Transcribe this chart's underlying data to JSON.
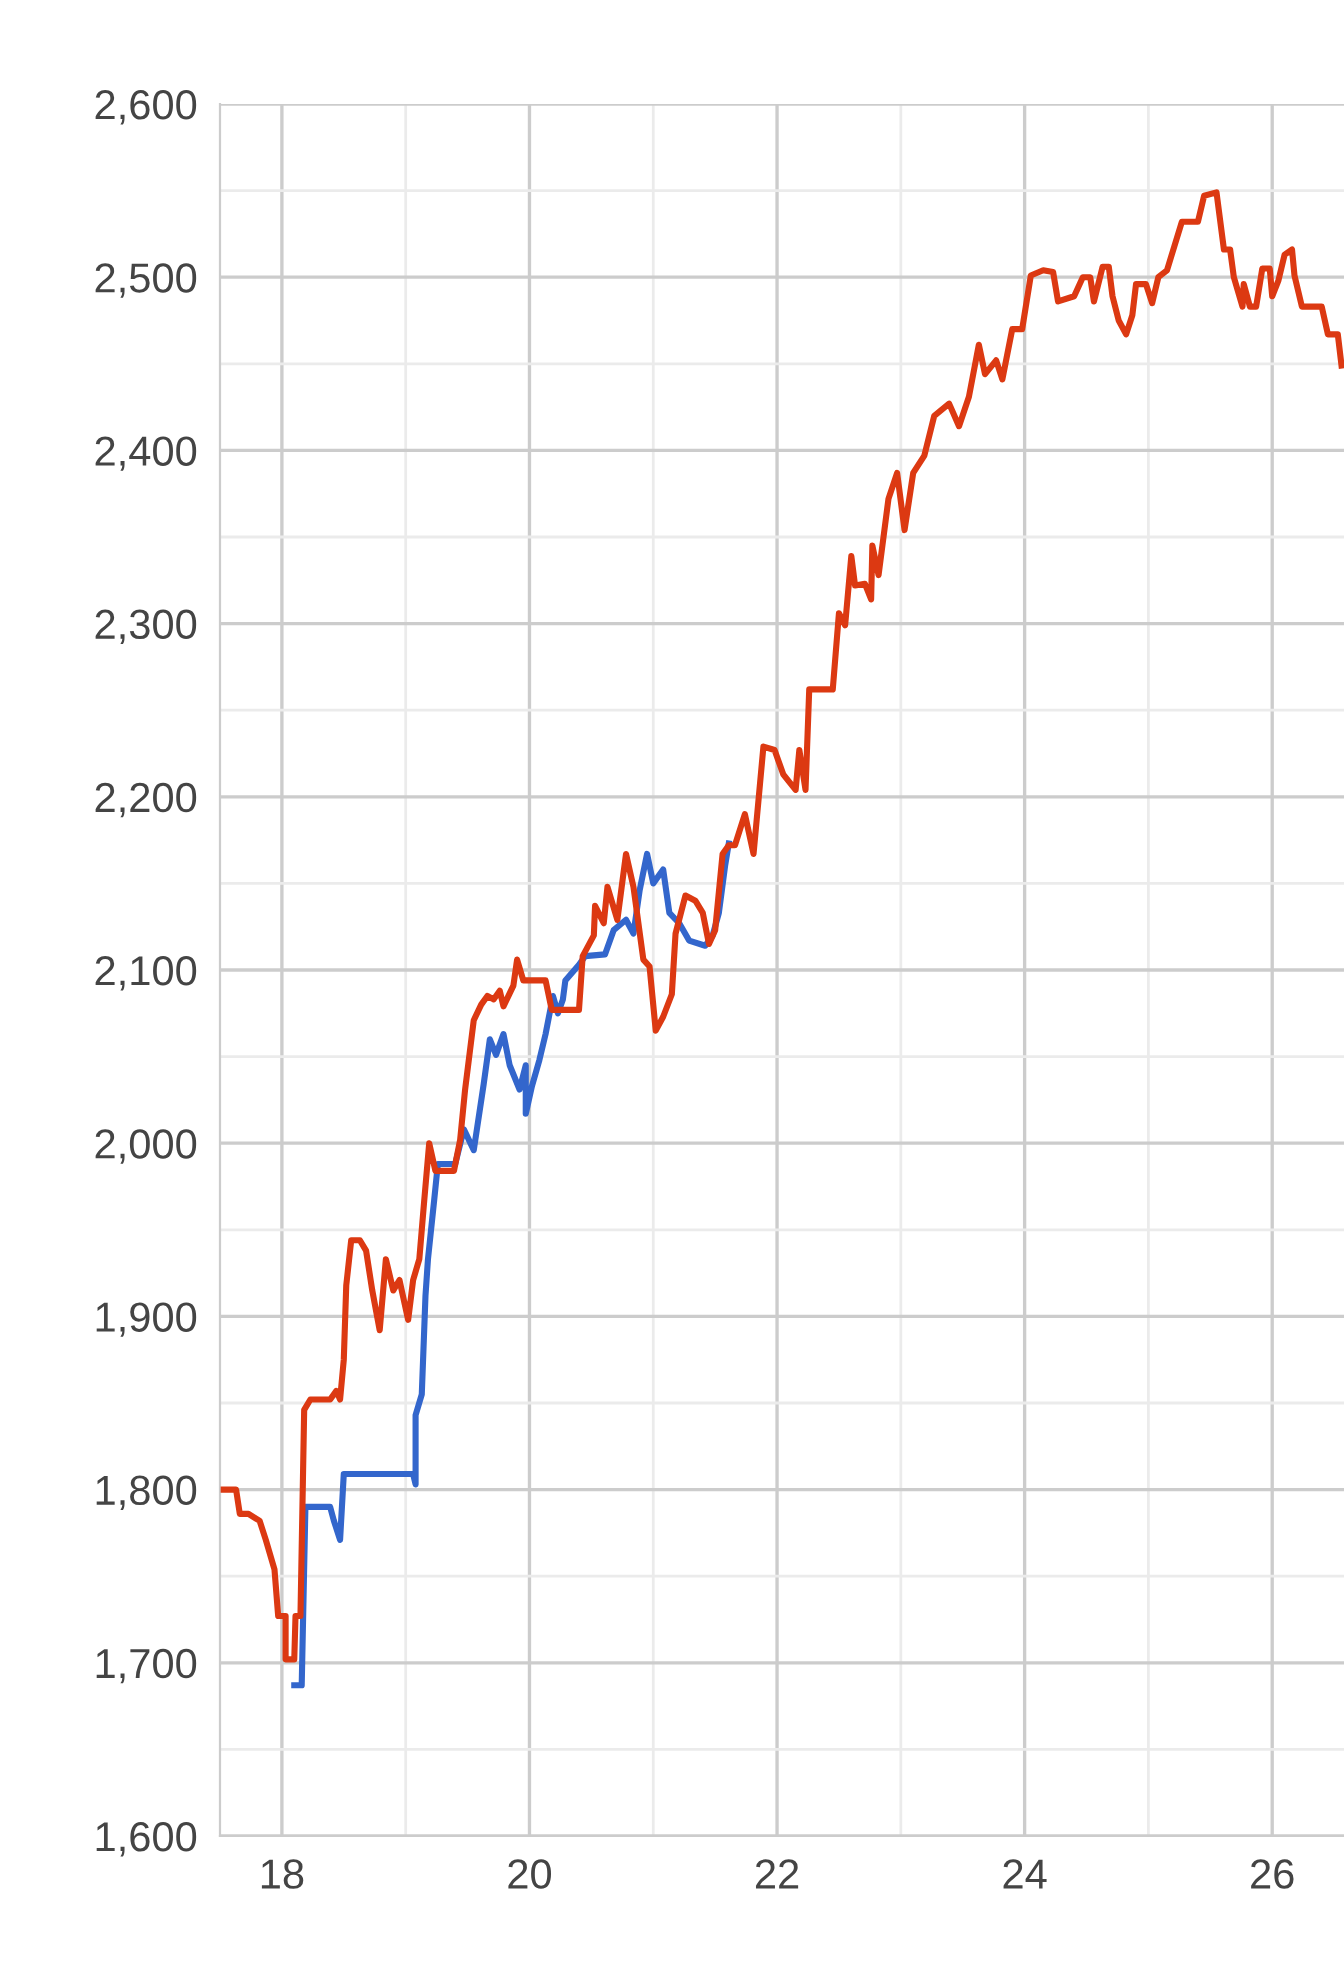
{
  "chart_data": {
    "type": "line",
    "xlim": [
      17.5,
      26.58
    ],
    "ylim": [
      1600,
      2600
    ],
    "xticks": [
      18,
      {
        "value": 19,
        "label": null
      },
      20,
      {
        "value": 21,
        "label": null
      },
      22,
      {
        "value": 23,
        "label": null
      },
      24,
      {
        "value": 25,
        "label": null
      },
      26
    ],
    "yticks": [
      {
        "value": 1600,
        "label": "1,600"
      },
      {
        "value": 1650,
        "label": null
      },
      {
        "value": 1700,
        "label": "1,700"
      },
      {
        "value": 1750,
        "label": null
      },
      {
        "value": 1800,
        "label": "1,800"
      },
      {
        "value": 1850,
        "label": null
      },
      {
        "value": 1900,
        "label": "1,900"
      },
      {
        "value": 1950,
        "label": null
      },
      {
        "value": 2000,
        "label": "2,000"
      },
      {
        "value": 2050,
        "label": null
      },
      {
        "value": 2100,
        "label": "2,100"
      },
      {
        "value": 2150,
        "label": null
      },
      {
        "value": 2200,
        "label": "2,200"
      },
      {
        "value": 2250,
        "label": null
      },
      {
        "value": 2300,
        "label": "2,300"
      },
      {
        "value": 2350,
        "label": null
      },
      {
        "value": 2400,
        "label": "2,400"
      },
      {
        "value": 2450,
        "label": null
      },
      {
        "value": 2500,
        "label": "2,500"
      },
      {
        "value": 2550,
        "label": null
      },
      {
        "value": 2600,
        "label": "2,600"
      }
    ],
    "grid": true,
    "marker": "none",
    "line_style": "solid",
    "series": [
      {
        "color": "#3366cc",
        "x": [
          18.1,
          18.16,
          18.19,
          18.39,
          18.42,
          18.47,
          18.5,
          19.06,
          19.08,
          19.08,
          19.13,
          19.16,
          19.18,
          19.23,
          19.26,
          19.4,
          19.47,
          19.55,
          19.63,
          19.68,
          19.73,
          19.79,
          19.84,
          19.92,
          19.97,
          19.97,
          20.02,
          20.08,
          20.13,
          20.19,
          20.23,
          20.27,
          20.29,
          20.4,
          20.45,
          20.61,
          20.68,
          20.78,
          20.84,
          20.89,
          20.95,
          21.0,
          21.08,
          21.13,
          21.21,
          21.29,
          21.42,
          21.48,
          21.53,
          21.58,
          21.61
        ],
        "values": [
          1687,
          1687,
          1790,
          1790,
          1782,
          1771,
          1809,
          1809,
          1803,
          1843,
          1855,
          1912,
          1933,
          1967,
          1988,
          1988,
          2008,
          1996,
          2034,
          2060,
          2051,
          2063,
          2045,
          2031,
          2045,
          2017,
          2033,
          2048,
          2063,
          2085,
          2075,
          2083,
          2094,
          2103,
          2108,
          2109,
          2123,
          2129,
          2121,
          2146,
          2167,
          2150,
          2158,
          2133,
          2127,
          2117,
          2114,
          2120,
          2133,
          2160,
          2173
        ]
      },
      {
        "color": "#dc3912",
        "x": [
          17.53,
          17.63,
          17.66,
          17.73,
          17.82,
          17.87,
          17.94,
          17.97,
          18.03,
          18.03,
          18.1,
          18.11,
          18.15,
          18.18,
          18.23,
          18.39,
          18.44,
          18.47,
          18.5,
          18.52,
          18.56,
          18.63,
          18.68,
          18.73,
          18.79,
          18.84,
          18.9,
          18.95,
          19.02,
          19.06,
          19.11,
          19.15,
          19.19,
          19.24,
          19.39,
          19.44,
          19.48,
          19.55,
          19.61,
          19.66,
          19.71,
          19.76,
          19.79,
          19.87,
          19.9,
          19.95,
          20.13,
          20.18,
          20.4,
          20.43,
          20.52,
          20.53,
          20.6,
          20.63,
          20.71,
          20.78,
          20.84,
          20.92,
          20.97,
          21.02,
          21.08,
          21.15,
          21.18,
          21.26,
          21.34,
          21.4,
          21.45,
          21.5,
          21.56,
          21.61,
          21.66,
          21.74,
          21.81,
          21.89,
          21.98,
          22.05,
          22.15,
          22.18,
          22.23,
          22.26,
          22.45,
          22.5,
          22.55,
          22.6,
          22.63,
          22.71,
          22.76,
          22.77,
          22.82,
          22.9,
          22.97,
          23.03,
          23.1,
          23.19,
          23.27,
          23.39,
          23.47,
          23.55,
          23.63,
          23.68,
          23.77,
          23.82,
          23.9,
          23.98,
          24.05,
          24.15,
          24.23,
          24.27,
          24.4,
          24.47,
          24.53,
          24.56,
          24.63,
          24.68,
          24.71,
          24.76,
          24.82,
          24.87,
          24.9,
          24.98,
          25.03,
          25.08,
          25.15,
          25.21,
          25.27,
          25.4,
          25.45,
          25.55,
          25.61,
          25.66,
          25.69,
          25.76,
          25.77,
          25.82,
          25.87,
          25.92,
          25.98,
          26.0,
          26.05,
          26.1,
          26.16,
          26.18,
          26.24,
          26.4,
          26.45,
          26.53,
          26.56
        ],
        "values": [
          1800,
          1800,
          1786,
          1786,
          1782,
          1771,
          1754,
          1727,
          1727,
          1702,
          1702,
          1727,
          1727,
          1846,
          1852,
          1852,
          1857,
          1852,
          1875,
          1918,
          1944,
          1944,
          1938,
          1915,
          1892,
          1933,
          1915,
          1921,
          1898,
          1921,
          1933,
          1967,
          2000,
          1984,
          1984,
          2002,
          2031,
          2071,
          2080,
          2085,
          2083,
          2088,
          2079,
          2091,
          2106,
          2094,
          2094,
          2077,
          2077,
          2108,
          2120,
          2137,
          2127,
          2148,
          2129,
          2167,
          2148,
          2106,
          2102,
          2065,
          2073,
          2086,
          2121,
          2143,
          2140,
          2133,
          2115,
          2123,
          2167,
          2172,
          2172,
          2190,
          2167,
          2229,
          2227,
          2213,
          2204,
          2227,
          2204,
          2262,
          2262,
          2306,
          2299,
          2339,
          2322,
          2323,
          2314,
          2345,
          2328,
          2372,
          2387,
          2354,
          2387,
          2397,
          2420,
          2427,
          2414,
          2431,
          2461,
          2444,
          2452,
          2441,
          2470,
          2470,
          2501,
          2504,
          2503,
          2486,
          2489,
          2500,
          2500,
          2486,
          2506,
          2506,
          2489,
          2475,
          2467,
          2478,
          2496,
          2496,
          2485,
          2500,
          2504,
          2518,
          2532,
          2532,
          2547,
          2549,
          2516,
          2516,
          2500,
          2483,
          2496,
          2483,
          2483,
          2505,
          2505,
          2489,
          2498,
          2513,
          2516,
          2501,
          2483,
          2483,
          2467,
          2467,
          2449
        ]
      }
    ]
  }
}
